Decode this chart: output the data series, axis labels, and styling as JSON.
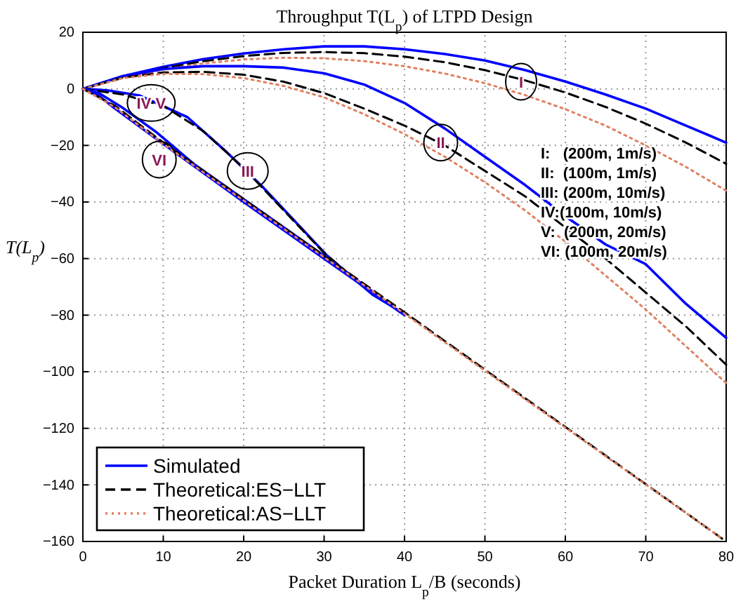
{
  "chart_data": {
    "type": "line",
    "title": "Throughput T(L$_{p}$) of LTPD Design",
    "xlabel": "Packet Duration L$_{p}$/B (seconds)",
    "ylabel": "T(L$_{p}$)",
    "xlim": [
      0,
      80
    ],
    "xticks": [
      0,
      10,
      20,
      30,
      40,
      50,
      60,
      70,
      80
    ],
    "ylim": [
      -160,
      20
    ],
    "yticks": [
      -160,
      -140,
      -120,
      -100,
      -80,
      -60,
      -40,
      -20,
      0,
      20
    ],
    "grid": true,
    "legend": "bottom left",
    "marker": "none",
    "series": [
      {
        "name": "Simulated",
        "color": "#0000ff",
        "line_style": "solid",
        "x": [
          0,
          5,
          10,
          15,
          20,
          25,
          30,
          35,
          40,
          45,
          50,
          55,
          60,
          65,
          70,
          75,
          80
        ],
        "values": [
          0,
          4.5,
          7.8,
          10.5,
          12.5,
          14,
          15,
          15,
          14,
          12.3,
          10,
          6.6,
          2.6,
          -2,
          -7,
          -13,
          -19
        ]
      },
      {
        "name": "Theoretical:ES−LLT",
        "color": "#000000",
        "line_style": "dashed",
        "x": [
          0,
          5,
          10,
          15,
          20,
          25,
          30,
          35,
          40,
          45,
          50,
          55,
          60,
          65,
          70,
          75,
          80
        ],
        "values": [
          0,
          4,
          7.3,
          9.8,
          11.6,
          12.7,
          13,
          12.6,
          11.4,
          9.4,
          6.6,
          3,
          -1.3,
          -6.4,
          -12.3,
          -19,
          -26.5
        ]
      },
      {
        "name": "Theoretical:AS−LLT",
        "color": "#e08060",
        "line_style": "dotted",
        "x": [
          0,
          5,
          10,
          15,
          20,
          25,
          30,
          35,
          40,
          45,
          50,
          55,
          60,
          65,
          70,
          75,
          80
        ],
        "values": [
          0,
          3.8,
          6.8,
          9,
          10.4,
          11,
          10.8,
          9.8,
          8,
          5.4,
          2,
          -2.2,
          -7.2,
          -13,
          -20,
          -27.6,
          -36
        ]
      },
      {
        "color": "#0000ff",
        "line_style": "solid",
        "x": [
          0,
          5,
          10,
          15,
          20,
          25,
          30,
          35,
          40,
          45,
          50,
          55,
          60,
          65,
          70,
          75,
          80
        ],
        "values": [
          0,
          4.5,
          7,
          8,
          8,
          7.5,
          5.5,
          1.5,
          -5,
          -14,
          -24,
          -34,
          -45,
          -55,
          -62,
          -76,
          -88
        ]
      },
      {
        "color": "#000000",
        "line_style": "dashed",
        "x": [
          0,
          5,
          10,
          15,
          20,
          25,
          30,
          35,
          40,
          45,
          50,
          55,
          60,
          65,
          70,
          75,
          80
        ],
        "values": [
          0,
          4,
          5.8,
          6,
          5,
          2.5,
          -1.5,
          -7,
          -13,
          -20,
          -29,
          -38,
          -49,
          -60,
          -72,
          -84,
          -97.5
        ]
      },
      {
        "color": "#e08060",
        "line_style": "dotted",
        "x": [
          0,
          5,
          10,
          15,
          20,
          25,
          30,
          35,
          40,
          45,
          50,
          55,
          60,
          65,
          70,
          75,
          80
        ],
        "values": [
          0,
          3.8,
          5.3,
          5.2,
          3.8,
          1,
          -3,
          -9,
          -16,
          -24,
          -33,
          -43,
          -54,
          -66,
          -78,
          -91,
          -104
        ]
      },
      {
        "color": "#0000ff",
        "line_style": "solid",
        "x": [
          0,
          3,
          7,
          13,
          17.6,
          22.3,
          30.4,
          36,
          38.5
        ],
        "values": [
          0,
          -0.5,
          -2.3,
          -10,
          -21.6,
          -34.5,
          -59,
          -72.7,
          -77
        ]
      },
      {
        "color": "#000000",
        "line_style": "dashed",
        "x": [
          0,
          5,
          10,
          15,
          20,
          25,
          30,
          35,
          37
        ],
        "values": [
          0,
          -2,
          -6,
          -15,
          -28,
          -43,
          -58,
          -70,
          -74
        ]
      },
      {
        "color": "#0000ff",
        "line_style": "solid",
        "x": [
          0,
          2,
          5,
          9,
          14,
          19,
          30,
          39.5
        ],
        "values": [
          0,
          -1.5,
          -6.8,
          -15,
          -27,
          -37,
          -59,
          -79
        ]
      },
      {
        "color": "#0000ff",
        "line_style": "solid",
        "x": [
          0,
          2,
          4,
          10,
          20,
          30,
          40
        ],
        "values": [
          0,
          -2.5,
          -7,
          -19.5,
          -40,
          -60,
          -80
        ]
      },
      {
        "color": "#000000",
        "line_style": "dashed",
        "x": [
          0,
          4,
          10,
          20,
          40,
          80
        ],
        "values": [
          0,
          -6,
          -19,
          -39,
          -79,
          -160
        ]
      },
      {
        "color": "#e08060",
        "line_style": "dotted",
        "x": [
          0,
          4,
          10,
          20,
          40,
          79.5
        ],
        "values": [
          0,
          -6.5,
          -19.5,
          -39.5,
          -79.5,
          -159
        ]
      }
    ],
    "annotations": [
      {
        "text": "I",
        "x": 54.5,
        "y": 2.5
      },
      {
        "text": "II",
        "x": 44.5,
        "y": -19
      },
      {
        "text": "III",
        "x": 20.5,
        "y": -29
      },
      {
        "text": "IV V",
        "x": 8.5,
        "y": -5
      },
      {
        "text": "VI",
        "x": 9.5,
        "y": -25
      },
      "I:   (200m, 1m/s)",
      "II:  (100m, 1m/s)",
      "III: (200m, 10m/s)",
      "IV:(100m, 10m/s)",
      "V:  (200m, 20m/s)",
      "VI: (100m, 20m/s)"
    ]
  }
}
